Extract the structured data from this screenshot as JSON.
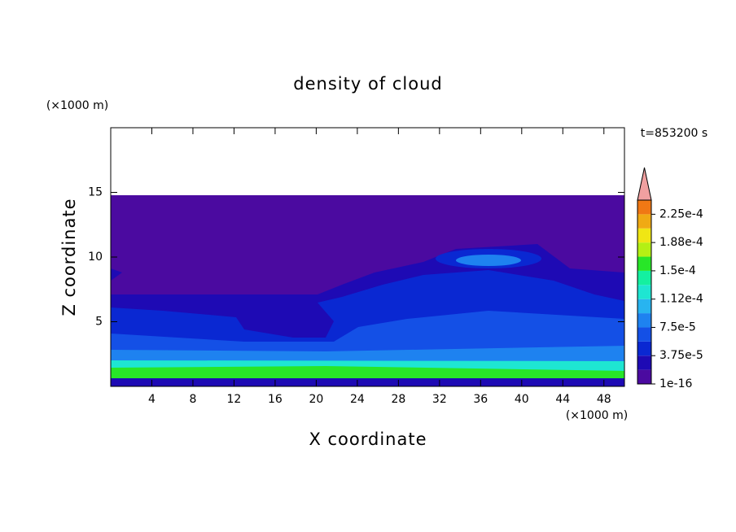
{
  "chart_data": {
    "type": "contour",
    "title": "density of cloud",
    "y_unit": "(×1000 m)",
    "x_unit": "(×1000 m)",
    "time_label": "t=853200 s",
    "xlabel": "X coordinate",
    "ylabel": "Z coordinate",
    "xlim": [
      0,
      50
    ],
    "ylim": [
      0,
      20
    ],
    "xticks": [
      4,
      8,
      12,
      16,
      20,
      24,
      28,
      32,
      36,
      40,
      44,
      48
    ],
    "yticks": [
      5,
      10,
      15
    ],
    "colorbar": {
      "levels": [
        1e-16,
        1.875e-05,
        3.75e-05,
        5.625e-05,
        7.5e-05,
        9.375e-05,
        0.0001125,
        0.00013125,
        0.00015,
        0.00016875,
        0.0001875,
        0.00020625,
        0.000225,
        0.00024375
      ],
      "colors": [
        "#4b0aa0",
        "#1e0ab4",
        "#0a28d2",
        "#1450e6",
        "#1e82f0",
        "#28b4f0",
        "#1ee6d2",
        "#14f0a0",
        "#28e628",
        "#b4f014",
        "#f0e614",
        "#f0aa14",
        "#f07814",
        "#f03214"
      ],
      "extend_color": "#f0a0a0",
      "ticks": [
        {
          "value": 1e-16,
          "label": "1e-16"
        },
        {
          "value": 3.75e-05,
          "label": "3.75e-5"
        },
        {
          "value": 7.5e-05,
          "label": "7.5e-5"
        },
        {
          "value": 0.0001125,
          "label": "1.12e-4"
        },
        {
          "value": 0.00015,
          "label": "1.5e-4"
        },
        {
          "value": 0.0001875,
          "label": "1.88e-4"
        },
        {
          "value": 0.000225,
          "label": "2.25e-4"
        }
      ]
    }
  }
}
